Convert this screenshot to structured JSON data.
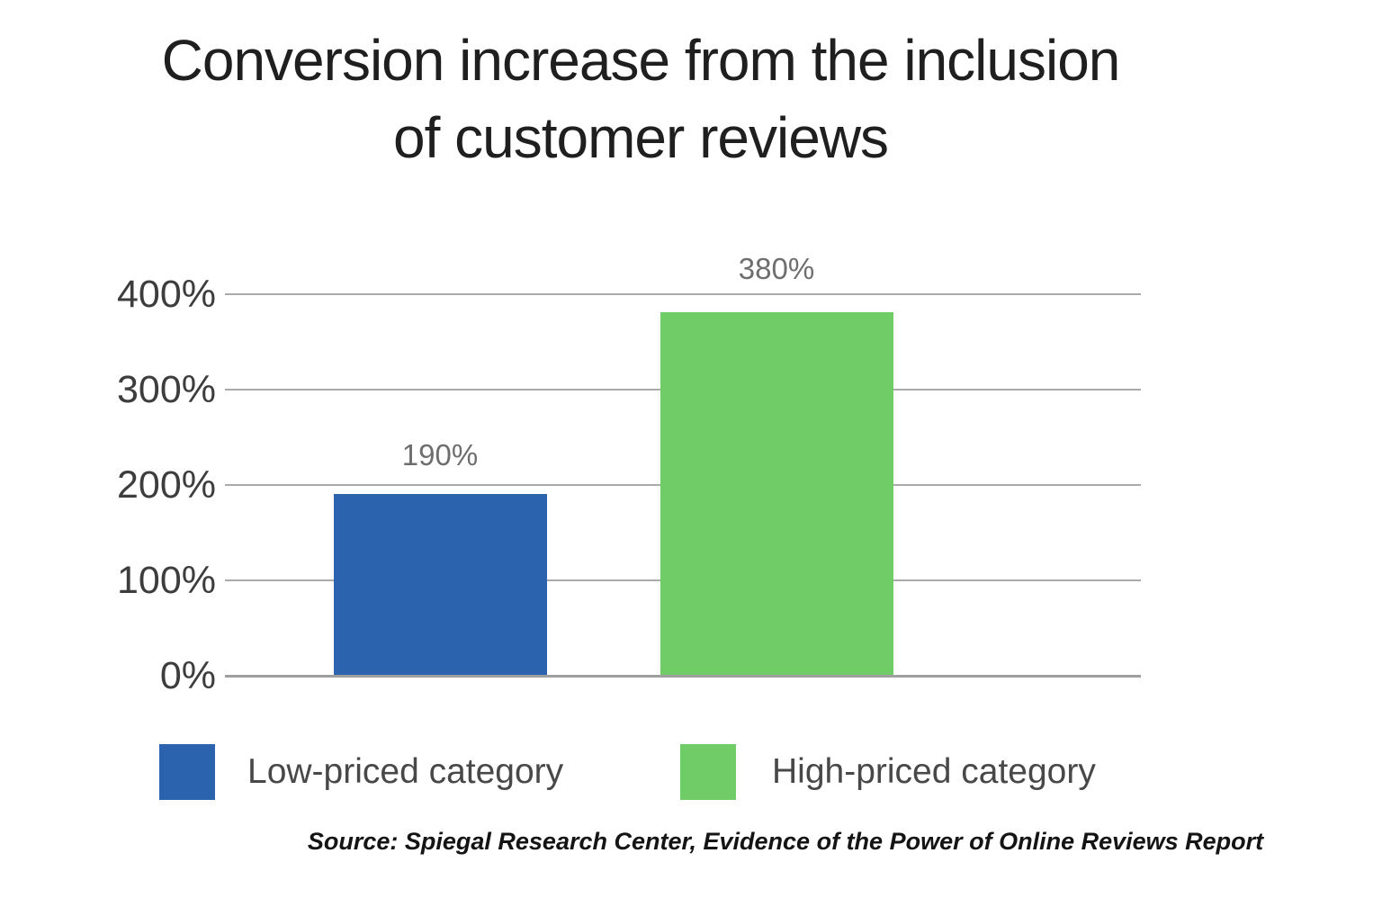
{
  "page": {
    "title_line1": "Conversion increase from the inclusion",
    "title_line2": "of customer reviews"
  },
  "chart_data": {
    "type": "bar",
    "title": "Conversion increase from the inclusion of customer reviews",
    "categories": [
      "Low-priced category",
      "High-priced category"
    ],
    "values": [
      190,
      380
    ],
    "value_labels": [
      "190%",
      "380%"
    ],
    "bar_colors": [
      "#2b63ae",
      "#70cc67"
    ],
    "xlabel": "",
    "ylabel": "",
    "ylim": [
      0,
      400
    ],
    "y_tick_labels": [
      "400%",
      "300%",
      "200%",
      "100%",
      "0%"
    ],
    "grid": true,
    "legend_position": "bottom"
  },
  "legend": {
    "items": [
      {
        "label": "Low-priced category",
        "color": "#2b63ae"
      },
      {
        "label": "High-priced category",
        "color": "#70cc67"
      }
    ]
  },
  "source": "Source: Spiegal Research Center, Evidence of the Power of Online Reviews Report",
  "colors": {
    "grid": "#a9a9a9",
    "axis_label": "#3d3d3d",
    "value_label": "#6e6e6e",
    "legend_label": "#484848",
    "title": "#1f1f1f"
  }
}
